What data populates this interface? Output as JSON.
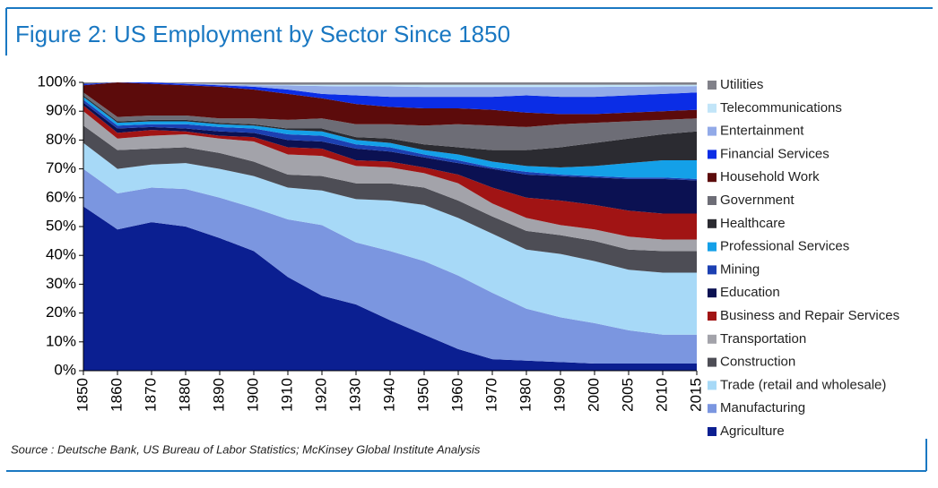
{
  "chart_data": {
    "type": "stacked-area",
    "title": "Figure 2: US Employment by Sector Since 1850",
    "source": "Source : Deutsche Bank, US Bureau of Labor Statistics; McKinsey Global Institute Analysis",
    "categories": [
      "1850",
      "1860",
      "1870",
      "1880",
      "1890",
      "1900",
      "1910",
      "1920",
      "1930",
      "1940",
      "1950",
      "1960",
      "1970",
      "1980",
      "1990",
      "2000",
      "2005",
      "2010",
      "2015"
    ],
    "ylim": [
      0,
      100
    ],
    "yticks": [
      {
        "value": 0,
        "label": "0%"
      },
      {
        "value": 10,
        "label": "10%"
      },
      {
        "value": 20,
        "label": "20%"
      },
      {
        "value": 30,
        "label": "30%"
      },
      {
        "value": 40,
        "label": "40%"
      },
      {
        "value": 50,
        "label": "50%"
      },
      {
        "value": 60,
        "label": "60%"
      },
      {
        "value": 70,
        "label": "70%"
      },
      {
        "value": 80,
        "label": "80%"
      },
      {
        "value": 90,
        "label": "90%"
      },
      {
        "value": 100,
        "label": "100%"
      }
    ],
    "series": [
      {
        "name": "Agriculture",
        "color": "#0b1f91",
        "values": [
          57,
          49,
          51.5,
          50,
          46,
          41.5,
          32.5,
          26,
          23,
          17.5,
          12.5,
          7.5,
          4,
          3.5,
          3,
          2.5,
          2.5,
          2.5,
          2.5
        ]
      },
      {
        "name": "Manufacturing",
        "color": "#7b96e0",
        "values": [
          13,
          12.5,
          12,
          13,
          14,
          15,
          20,
          24.5,
          21.5,
          24,
          25.5,
          25.5,
          23,
          18,
          15.5,
          14,
          11.5,
          10,
          10
        ]
      },
      {
        "name": "Trade (retail and wholesale)",
        "color": "#a7d9f7",
        "values": [
          9,
          8.5,
          8,
          9,
          10,
          11,
          11,
          12,
          15,
          17.5,
          19.5,
          20,
          20.5,
          20.5,
          22,
          21.5,
          21,
          21.5,
          21.5
        ]
      },
      {
        "name": "Construction",
        "color": "#4d4d55",
        "values": [
          6,
          6.5,
          5.5,
          5.5,
          5.5,
          5,
          4.5,
          5,
          5.5,
          6,
          6,
          6,
          6,
          6.5,
          6.5,
          7,
          7,
          7.5,
          7.5
        ]
      },
      {
        "name": "Transportation",
        "color": "#a3a3aa",
        "values": [
          5,
          4,
          4.5,
          4.5,
          5,
          7,
          7,
          7,
          6,
          5.5,
          5,
          6,
          4.5,
          4.5,
          3.5,
          4,
          4.5,
          4,
          4
        ]
      },
      {
        "name": "Business and Repair Services",
        "color": "#a11414",
        "values": [
          2,
          2,
          2,
          1,
          1,
          1.5,
          2.5,
          2.5,
          2,
          2,
          2,
          3,
          5.5,
          7,
          8.5,
          8.5,
          9,
          9,
          9
        ]
      },
      {
        "name": "Education",
        "color": "#0b1152",
        "values": [
          1,
          1.5,
          1,
          1,
          1.5,
          1.5,
          2.5,
          2.5,
          4,
          3.5,
          3.5,
          4,
          6.5,
          8,
          8.5,
          9.5,
          11,
          12,
          11.5
        ]
      },
      {
        "name": "Mining",
        "color": "#1c40b2",
        "values": [
          1,
          1,
          1,
          1.5,
          1.5,
          1.5,
          2,
          2,
          1.5,
          1.5,
          1,
          1,
          0.5,
          1,
          0.5,
          0.5,
          0.5,
          0.5,
          0.5
        ]
      },
      {
        "name": "Professional Services",
        "color": "#14a0e8",
        "values": [
          1,
          1,
          1,
          1,
          1,
          1,
          1.5,
          1.5,
          1.5,
          1.5,
          1.5,
          2,
          2,
          2,
          2.5,
          3.5,
          5,
          6,
          6.5
        ]
      },
      {
        "name": "Healthcare",
        "color": "#2b2b31",
        "values": [
          0.5,
          0.5,
          0.5,
          0.5,
          0.5,
          0.5,
          0.5,
          1,
          1,
          1.5,
          2,
          2.5,
          4,
          5.5,
          7,
          8,
          8.5,
          9,
          10
        ]
      },
      {
        "name": "Government",
        "color": "#6d6d76",
        "values": [
          1,
          1.5,
          1.5,
          1.5,
          1.5,
          2,
          3,
          3.5,
          4.5,
          5,
          6.5,
          8,
          8.5,
          8,
          8,
          7,
          6,
          5,
          4.5
        ]
      },
      {
        "name": "Household Work",
        "color": "#5c0b0b",
        "values": [
          2.5,
          12,
          11,
          10.5,
          11,
          10,
          9,
          7,
          7,
          6,
          6,
          5.5,
          5.5,
          5,
          3.5,
          3,
          3,
          3,
          3
        ]
      },
      {
        "name": "Financial Services",
        "color": "#0b2de6",
        "values": [
          0.5,
          0,
          0.5,
          0.5,
          0.5,
          1,
          1.5,
          1.5,
          3,
          3.5,
          4,
          4,
          4.5,
          6,
          6,
          6,
          6,
          6,
          6
        ]
      },
      {
        "name": "Entertainment",
        "color": "#92aae8",
        "values": [
          0,
          0,
          0,
          0.2,
          0.3,
          0.5,
          1.4,
          2.7,
          3.1,
          3.6,
          3.4,
          3.4,
          3.4,
          2.9,
          3.4,
          3.4,
          3,
          2.6,
          2.2
        ]
      },
      {
        "name": "Telecommunications",
        "color": "#c2e5f8",
        "values": [
          0,
          0,
          0,
          0,
          0.1,
          0.2,
          0.3,
          0.5,
          0.6,
          0.6,
          0.8,
          0.8,
          0.8,
          0.8,
          0.8,
          0.8,
          0.7,
          0.6,
          0.5
        ]
      },
      {
        "name": "Utilities",
        "color": "#818189",
        "values": [
          0.5,
          0,
          0,
          0.3,
          0.6,
          0.8,
          0.8,
          0.8,
          0.8,
          0.8,
          0.8,
          0.8,
          0.8,
          0.8,
          0.8,
          0.8,
          0.8,
          0.8,
          0.8
        ]
      }
    ]
  }
}
